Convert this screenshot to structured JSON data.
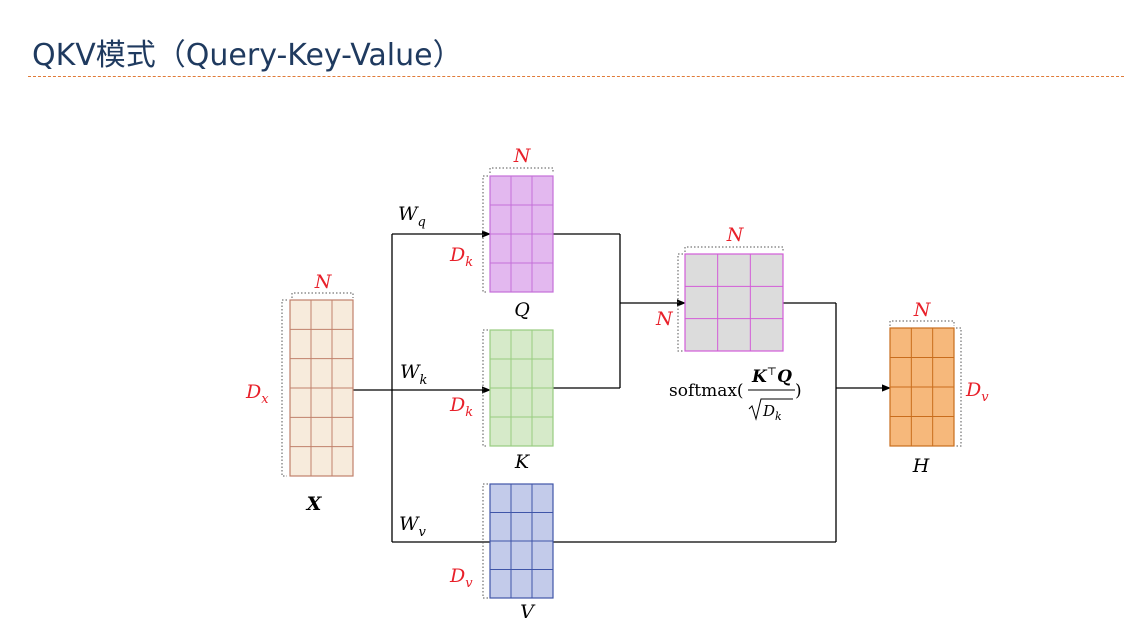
{
  "slide": {
    "title": "QKV模式（Query-Key-Value）"
  },
  "diagram": {
    "labels": {
      "x_name": "X",
      "x_cols": "N",
      "x_rows_base": "D",
      "x_rows_sub": "x",
      "wq_base": "W",
      "wq_sub": "q",
      "wk_base": "W",
      "wk_sub": "k",
      "wv_base": "W",
      "wv_sub": "v",
      "q_name": "Q",
      "q_cols": "N",
      "q_rows_base": "D",
      "q_rows_sub": "k",
      "k_name": "K",
      "k_rows_base": "D",
      "k_rows_sub": "k",
      "v_name": "V",
      "v_rows_base": "D",
      "v_rows_sub": "v",
      "att_cols": "N",
      "att_rows": "N",
      "softmax_fn": "softmax(",
      "softmax_num_k": "K",
      "softmax_num_t": "⊤",
      "softmax_num_q": "Q",
      "softmax_den_d": "D",
      "softmax_den_sub": "k",
      "softmax_close": ")",
      "h_name": "H",
      "h_cols": "N",
      "h_rows_base": "D",
      "h_rows_sub": "v"
    },
    "colors": {
      "title": "#1f3a5f",
      "dim_label": "#e8202a",
      "x_fill": "#f7ebdc",
      "x_stroke": "#c0806b",
      "q_fill": "#e3b8ef",
      "q_stroke": "#c46fd8",
      "k_fill": "#d6eac9",
      "k_stroke": "#98cc80",
      "v_fill": "#c3cbea",
      "v_stroke": "#3f55a8",
      "att_fill": "#dcdcdc",
      "att_stroke": "#d35cd8",
      "h_fill": "#f6b87b",
      "h_stroke": "#c96d1d"
    }
  }
}
